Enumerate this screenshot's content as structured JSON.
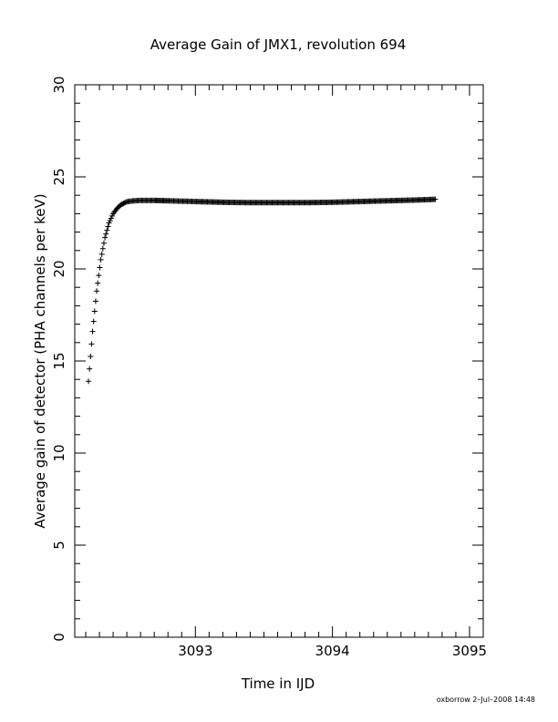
{
  "chart_data": {
    "type": "scatter",
    "title": "Average Gain of JMX1, revolution 694",
    "xlabel": "Time in IJD",
    "ylabel": "Average gain of detector (PHA channels per keV)",
    "xlim": [
      3092.12,
      3095.1
    ],
    "ylim": [
      0,
      30
    ],
    "xticks": [
      3093,
      3094,
      3095
    ],
    "yticks": [
      0,
      5,
      10,
      15,
      20,
      25,
      30
    ],
    "grid": false,
    "marker": "plus",
    "series": [
      {
        "x": [
          3092.22,
          3092.25,
          3092.28,
          3092.31,
          3092.34,
          3092.37,
          3092.4,
          3092.43,
          3092.46,
          3092.5,
          3092.55,
          3092.6,
          3092.7,
          3092.8,
          3092.9,
          3093.0,
          3093.2,
          3093.4,
          3093.6,
          3093.8,
          3094.0,
          3094.2,
          3094.4,
          3094.6,
          3094.75
        ],
        "y": [
          13.9,
          16.6,
          18.8,
          20.5,
          21.7,
          22.5,
          23.0,
          23.3,
          23.5,
          23.65,
          23.7,
          23.72,
          23.72,
          23.7,
          23.68,
          23.66,
          23.62,
          23.6,
          23.6,
          23.6,
          23.62,
          23.66,
          23.7,
          23.74,
          23.78
        ]
      }
    ]
  },
  "footer": {
    "credit": "oxborrow   2–Jul–2008 14:48"
  }
}
